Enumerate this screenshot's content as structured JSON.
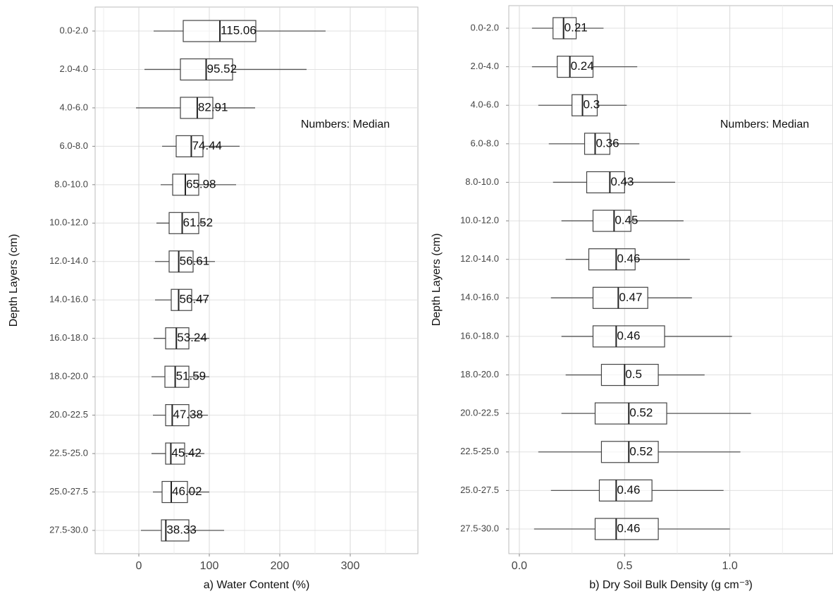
{
  "chart_data": [
    {
      "type": "box",
      "title": null,
      "annotation": "Numbers: Median",
      "xlabel": "a) Water Content (%)",
      "ylabel": "Depth Layers (cm)",
      "categories": [
        "0.0-2.0",
        "2.0-4.0",
        "4.0-6.0",
        "6.0-8.0",
        "8.0-10.0",
        "10.0-12.0",
        "12.0-14.0",
        "14.0-16.0",
        "16.0-18.0",
        "18.0-20.0",
        "20.0-22.5",
        "22.5-25.0",
        "25.0-27.5",
        "27.5-30.0"
      ],
      "whisker_low": [
        21,
        8,
        -4,
        33,
        31,
        25,
        23,
        23,
        21,
        18,
        20,
        18,
        20,
        3
      ],
      "q1": [
        63,
        59,
        59,
        53,
        48,
        43,
        43,
        46,
        38,
        37,
        38,
        38,
        33,
        32
      ],
      "median": [
        115.06,
        95.52,
        82.91,
        74.44,
        65.98,
        61.52,
        56.61,
        56.47,
        53.24,
        51.59,
        47.38,
        45.42,
        46.02,
        38.33
      ],
      "q3": [
        166,
        133,
        105,
        91,
        85,
        85,
        77,
        75,
        71,
        71,
        71,
        65,
        69,
        71
      ],
      "whisker_high": [
        265,
        238,
        165,
        143,
        138,
        93,
        108,
        98,
        100,
        100,
        98,
        93,
        100,
        121
      ],
      "xlim": [
        -62,
        396
      ],
      "xticks": [
        0,
        100,
        200,
        300
      ],
      "x_minor_ticks": [
        -50,
        50,
        150,
        250,
        350
      ],
      "grid": true
    },
    {
      "type": "box",
      "title": null,
      "annotation": "Numbers: Median",
      "xlabel": "b) Dry Soil Bulk Density (g cm⁻³)",
      "ylabel": "Depth Layers (cm)",
      "categories": [
        "0.0-2.0",
        "2.0-4.0",
        "4.0-6.0",
        "6.0-8.0",
        "8.0-10.0",
        "10.0-12.0",
        "12.0-14.0",
        "14.0-16.0",
        "16.0-18.0",
        "18.0-20.0",
        "20.0-22.5",
        "22.5-25.0",
        "25.0-27.5",
        "27.5-30.0"
      ],
      "whisker_low": [
        0.06,
        0.06,
        0.09,
        0.14,
        0.16,
        0.2,
        0.22,
        0.15,
        0.2,
        0.22,
        0.2,
        0.09,
        0.15,
        0.07
      ],
      "q1": [
        0.16,
        0.18,
        0.25,
        0.31,
        0.32,
        0.35,
        0.33,
        0.35,
        0.35,
        0.39,
        0.36,
        0.39,
        0.38,
        0.36
      ],
      "median": [
        0.21,
        0.24,
        0.3,
        0.36,
        0.43,
        0.45,
        0.46,
        0.47,
        0.46,
        0.5,
        0.52,
        0.52,
        0.46,
        0.46
      ],
      "q3": [
        0.27,
        0.35,
        0.37,
        0.43,
        0.5,
        0.53,
        0.55,
        0.61,
        0.69,
        0.66,
        0.7,
        0.66,
        0.63,
        0.66
      ],
      "whisker_high": [
        0.4,
        0.56,
        0.51,
        0.57,
        0.74,
        0.78,
        0.81,
        0.82,
        1.01,
        0.88,
        1.1,
        1.05,
        0.97,
        1.0
      ],
      "xlim": [
        -0.05,
        1.49
      ],
      "xticks": [
        {
          "value": 0,
          "label": "0.0"
        },
        0.5,
        {
          "value": 1,
          "label": "1.0"
        }
      ],
      "x_minor_ticks": [
        0.25,
        0.75,
        1.25
      ],
      "grid": true
    }
  ]
}
